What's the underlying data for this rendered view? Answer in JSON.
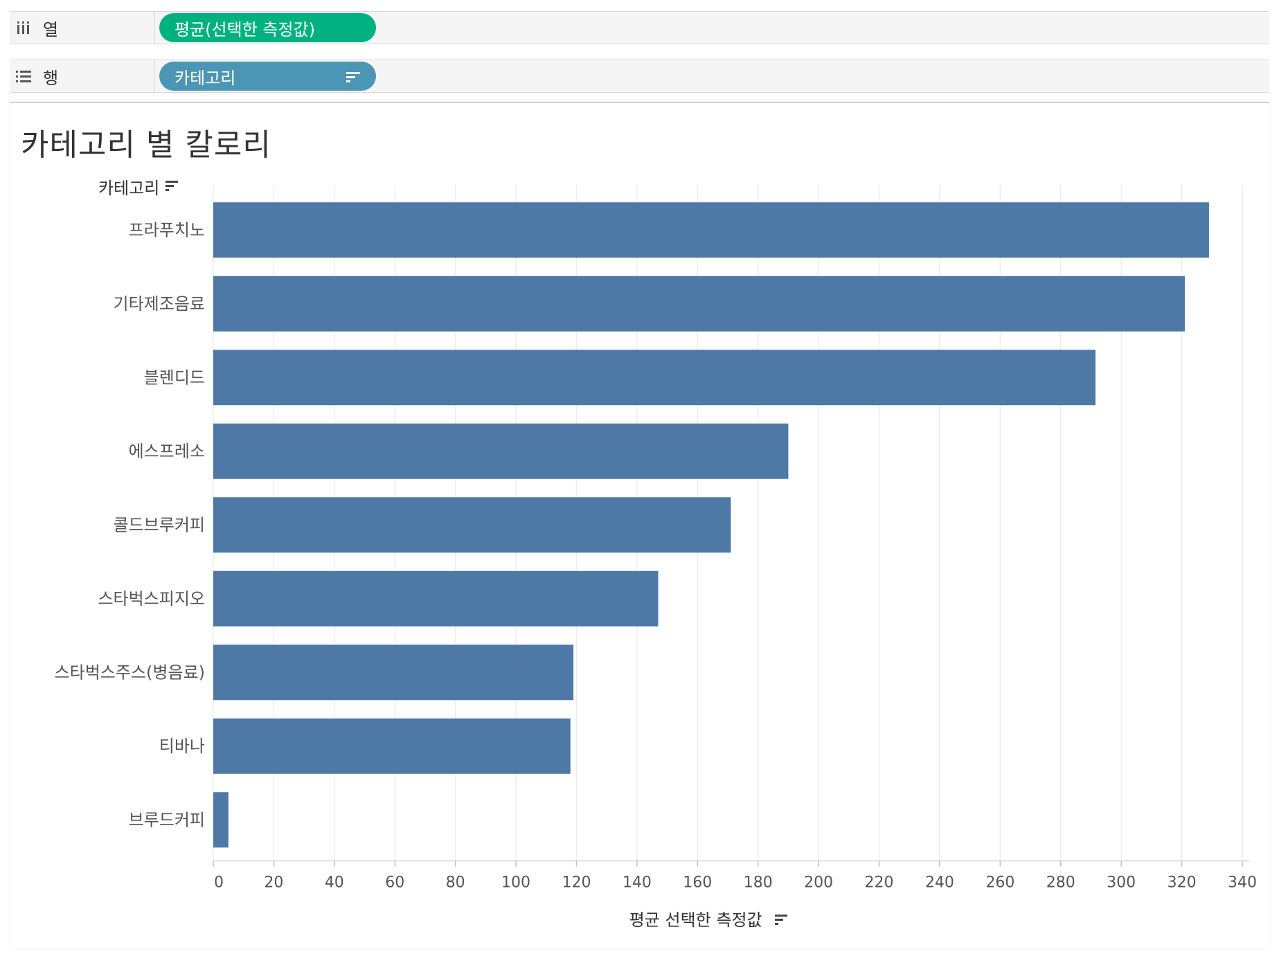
{
  "shelves": {
    "columns": {
      "label": "열",
      "icon": "columns-icon",
      "pill": "평균(선택한 측정값)",
      "pill_color": "#00b180"
    },
    "rows": {
      "label": "행",
      "icon": "rows-icon",
      "pill": "카테고리",
      "pill_color": "#4c96b5",
      "pill_icon": "sort-descending-icon"
    }
  },
  "chart": {
    "title": "카테고리 별 칼로리",
    "row_header": "카테고리",
    "x_title": "평균 선택한 측정값"
  },
  "chart_data": {
    "type": "bar",
    "orientation": "horizontal",
    "title": "카테고리 별 칼로리",
    "xlabel": "평균 선택한 측정값",
    "ylabel": "카테고리",
    "categories": [
      "프라푸치노",
      "기타제조음료",
      "블렌디드",
      "에스프레소",
      "콜드브루커피",
      "스타벅스피지오",
      "스타벅스주스(병음료)",
      "티바나",
      "브루드커피"
    ],
    "values": [
      329,
      321,
      291.5,
      190,
      171,
      147,
      119,
      118,
      5
    ],
    "xlim": [
      0,
      340
    ],
    "xticks": [
      0,
      20,
      40,
      60,
      80,
      100,
      120,
      140,
      160,
      180,
      200,
      220,
      240,
      260,
      280,
      300,
      320,
      340
    ],
    "bar_color": "#4e79a7",
    "grid": "vertical",
    "legend": "none"
  }
}
